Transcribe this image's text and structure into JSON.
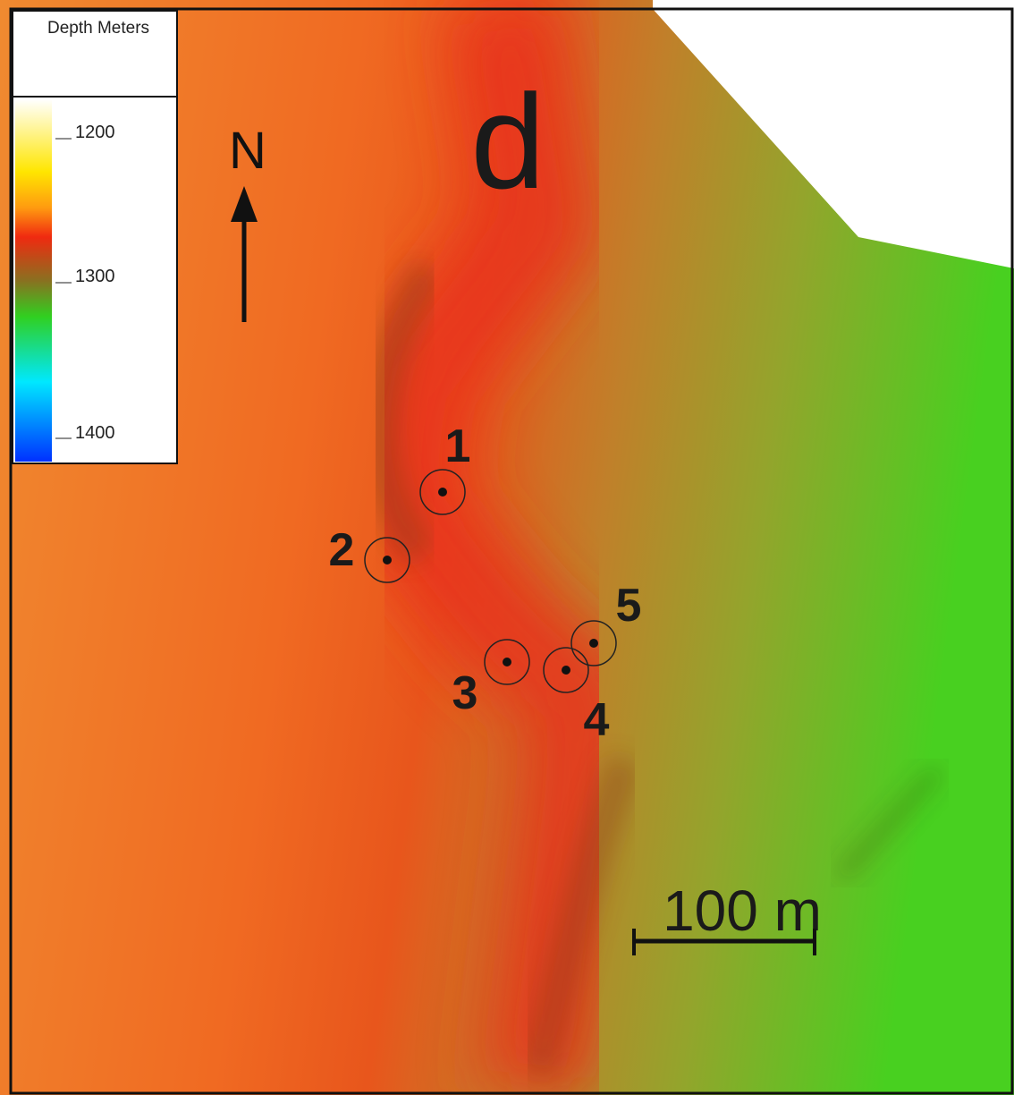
{
  "legend": {
    "title": "Depth Meters",
    "ticks": [
      "1200",
      "1300",
      "1400"
    ]
  },
  "north_label": "N",
  "panel_label": "d",
  "sites": [
    "1",
    "2",
    "3",
    "4",
    "5"
  ],
  "scale_bar": "100 m"
}
